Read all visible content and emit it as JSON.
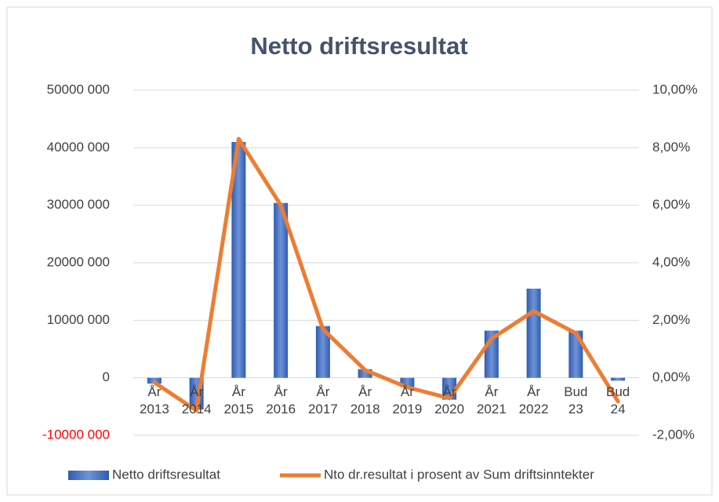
{
  "chart_data": {
    "type": "bar_line",
    "title": "Netto driftsresultat",
    "categories": [
      "År 2013",
      "År 2014",
      "År 2015",
      "År 2016",
      "År 2017",
      "År 2018",
      "År 2019",
      "År 2020",
      "År 2021",
      "År 2022",
      "Bud 23",
      "Bud 24"
    ],
    "series": [
      {
        "name": "Netto driftsresultat",
        "type": "bar",
        "color": "#4472c4",
        "values": [
          -1000000,
          -5500000,
          41000000,
          30400000,
          9000000,
          1500000,
          -1600000,
          -3800000,
          8200000,
          15500000,
          8200000,
          -500000
        ]
      },
      {
        "name": "Nto dr.resultat i prosent av Sum driftsinntekter",
        "type": "line",
        "axis": "y2",
        "color": "#ed7d31",
        "values": [
          -0.16,
          -1.14,
          8.31,
          6.0,
          1.69,
          0.27,
          -0.33,
          -0.71,
          1.36,
          2.32,
          1.55,
          -0.82
        ]
      }
    ],
    "ylim": [
      -10000000,
      50000000
    ],
    "yticks": [
      {
        "value": -10000000,
        "label": "-10000 000",
        "color": "#ff0000"
      },
      {
        "value": 0,
        "label": "0"
      },
      {
        "value": 10000000,
        "label": "10000 000"
      },
      {
        "value": 20000000,
        "label": "20000 000"
      },
      {
        "value": 30000000,
        "label": "30000 000"
      },
      {
        "value": 40000000,
        "label": "40000 000"
      },
      {
        "value": 50000000,
        "label": "50000 000"
      }
    ],
    "y2lim": [
      -2,
      10
    ],
    "y2ticks": [
      {
        "value": -2,
        "label": "-2,00%"
      },
      {
        "value": 0,
        "label": "0,00%"
      },
      {
        "value": 2,
        "label": "2,00%"
      },
      {
        "value": 4,
        "label": "4,00%"
      },
      {
        "value": 6,
        "label": "6,00%"
      },
      {
        "value": 8,
        "label": "8,00%"
      },
      {
        "value": 10,
        "label": "10,00%"
      }
    ],
    "grid": true,
    "legend": "bottom"
  }
}
